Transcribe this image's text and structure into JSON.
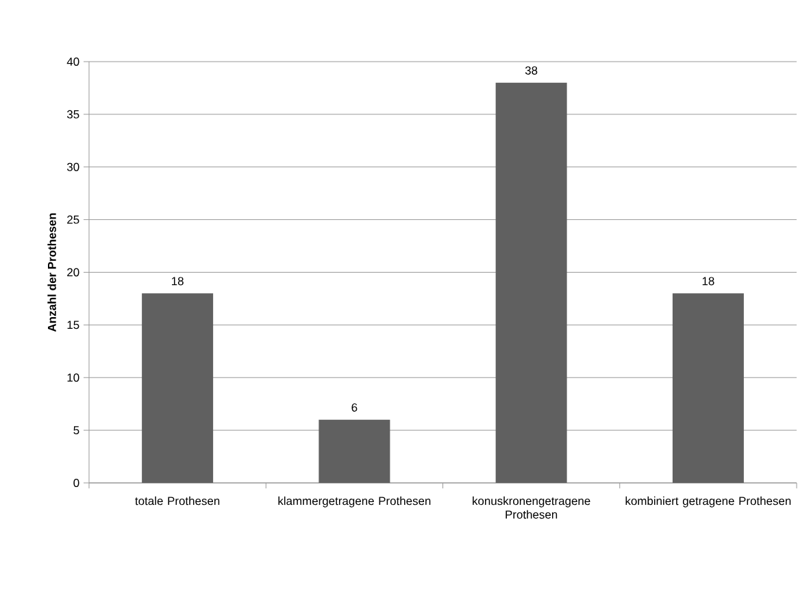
{
  "chart_data": {
    "type": "bar",
    "ylabel": "Anzahl der Prothesen",
    "categories": [
      "totale Prothesen",
      "klammergetragene Prothesen",
      "konuskronengetragene Prothesen",
      "kombiniert getragene Prothesen"
    ],
    "values": [
      18,
      6,
      38,
      18
    ],
    "color": "#606060",
    "ylim": [
      0,
      40
    ],
    "yticks": [
      0,
      5,
      10,
      15,
      20,
      25,
      30,
      35,
      40
    ],
    "grid": "y",
    "data_labels": true
  }
}
